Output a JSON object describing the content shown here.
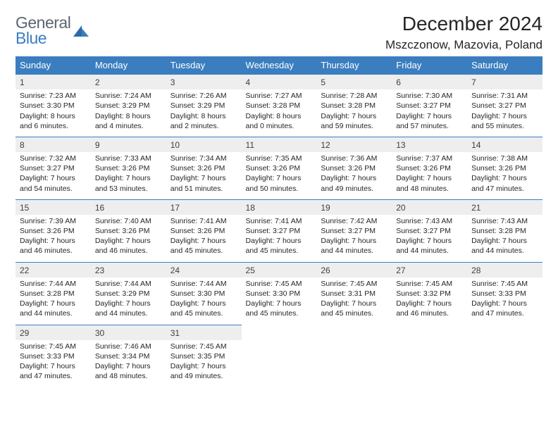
{
  "logo": {
    "line1": "General",
    "line2": "Blue"
  },
  "title": "December 2024",
  "location": "Mszczonow, Mazovia, Poland",
  "colors": {
    "brand_blue": "#3b7ec0",
    "header_gray": "#5c6670",
    "daynum_bg": "#eeeeee",
    "text": "#262626"
  },
  "day_headers": [
    "Sunday",
    "Monday",
    "Tuesday",
    "Wednesday",
    "Thursday",
    "Friday",
    "Saturday"
  ],
  "weeks": [
    [
      {
        "n": "1",
        "sr": "Sunrise: 7:23 AM",
        "ss": "Sunset: 3:30 PM",
        "d1": "Daylight: 8 hours",
        "d2": "and 6 minutes."
      },
      {
        "n": "2",
        "sr": "Sunrise: 7:24 AM",
        "ss": "Sunset: 3:29 PM",
        "d1": "Daylight: 8 hours",
        "d2": "and 4 minutes."
      },
      {
        "n": "3",
        "sr": "Sunrise: 7:26 AM",
        "ss": "Sunset: 3:29 PM",
        "d1": "Daylight: 8 hours",
        "d2": "and 2 minutes."
      },
      {
        "n": "4",
        "sr": "Sunrise: 7:27 AM",
        "ss": "Sunset: 3:28 PM",
        "d1": "Daylight: 8 hours",
        "d2": "and 0 minutes."
      },
      {
        "n": "5",
        "sr": "Sunrise: 7:28 AM",
        "ss": "Sunset: 3:28 PM",
        "d1": "Daylight: 7 hours",
        "d2": "and 59 minutes."
      },
      {
        "n": "6",
        "sr": "Sunrise: 7:30 AM",
        "ss": "Sunset: 3:27 PM",
        "d1": "Daylight: 7 hours",
        "d2": "and 57 minutes."
      },
      {
        "n": "7",
        "sr": "Sunrise: 7:31 AM",
        "ss": "Sunset: 3:27 PM",
        "d1": "Daylight: 7 hours",
        "d2": "and 55 minutes."
      }
    ],
    [
      {
        "n": "8",
        "sr": "Sunrise: 7:32 AM",
        "ss": "Sunset: 3:27 PM",
        "d1": "Daylight: 7 hours",
        "d2": "and 54 minutes."
      },
      {
        "n": "9",
        "sr": "Sunrise: 7:33 AM",
        "ss": "Sunset: 3:26 PM",
        "d1": "Daylight: 7 hours",
        "d2": "and 53 minutes."
      },
      {
        "n": "10",
        "sr": "Sunrise: 7:34 AM",
        "ss": "Sunset: 3:26 PM",
        "d1": "Daylight: 7 hours",
        "d2": "and 51 minutes."
      },
      {
        "n": "11",
        "sr": "Sunrise: 7:35 AM",
        "ss": "Sunset: 3:26 PM",
        "d1": "Daylight: 7 hours",
        "d2": "and 50 minutes."
      },
      {
        "n": "12",
        "sr": "Sunrise: 7:36 AM",
        "ss": "Sunset: 3:26 PM",
        "d1": "Daylight: 7 hours",
        "d2": "and 49 minutes."
      },
      {
        "n": "13",
        "sr": "Sunrise: 7:37 AM",
        "ss": "Sunset: 3:26 PM",
        "d1": "Daylight: 7 hours",
        "d2": "and 48 minutes."
      },
      {
        "n": "14",
        "sr": "Sunrise: 7:38 AM",
        "ss": "Sunset: 3:26 PM",
        "d1": "Daylight: 7 hours",
        "d2": "and 47 minutes."
      }
    ],
    [
      {
        "n": "15",
        "sr": "Sunrise: 7:39 AM",
        "ss": "Sunset: 3:26 PM",
        "d1": "Daylight: 7 hours",
        "d2": "and 46 minutes."
      },
      {
        "n": "16",
        "sr": "Sunrise: 7:40 AM",
        "ss": "Sunset: 3:26 PM",
        "d1": "Daylight: 7 hours",
        "d2": "and 46 minutes."
      },
      {
        "n": "17",
        "sr": "Sunrise: 7:41 AM",
        "ss": "Sunset: 3:26 PM",
        "d1": "Daylight: 7 hours",
        "d2": "and 45 minutes."
      },
      {
        "n": "18",
        "sr": "Sunrise: 7:41 AM",
        "ss": "Sunset: 3:27 PM",
        "d1": "Daylight: 7 hours",
        "d2": "and 45 minutes."
      },
      {
        "n": "19",
        "sr": "Sunrise: 7:42 AM",
        "ss": "Sunset: 3:27 PM",
        "d1": "Daylight: 7 hours",
        "d2": "and 44 minutes."
      },
      {
        "n": "20",
        "sr": "Sunrise: 7:43 AM",
        "ss": "Sunset: 3:27 PM",
        "d1": "Daylight: 7 hours",
        "d2": "and 44 minutes."
      },
      {
        "n": "21",
        "sr": "Sunrise: 7:43 AM",
        "ss": "Sunset: 3:28 PM",
        "d1": "Daylight: 7 hours",
        "d2": "and 44 minutes."
      }
    ],
    [
      {
        "n": "22",
        "sr": "Sunrise: 7:44 AM",
        "ss": "Sunset: 3:28 PM",
        "d1": "Daylight: 7 hours",
        "d2": "and 44 minutes."
      },
      {
        "n": "23",
        "sr": "Sunrise: 7:44 AM",
        "ss": "Sunset: 3:29 PM",
        "d1": "Daylight: 7 hours",
        "d2": "and 44 minutes."
      },
      {
        "n": "24",
        "sr": "Sunrise: 7:44 AM",
        "ss": "Sunset: 3:30 PM",
        "d1": "Daylight: 7 hours",
        "d2": "and 45 minutes."
      },
      {
        "n": "25",
        "sr": "Sunrise: 7:45 AM",
        "ss": "Sunset: 3:30 PM",
        "d1": "Daylight: 7 hours",
        "d2": "and 45 minutes."
      },
      {
        "n": "26",
        "sr": "Sunrise: 7:45 AM",
        "ss": "Sunset: 3:31 PM",
        "d1": "Daylight: 7 hours",
        "d2": "and 45 minutes."
      },
      {
        "n": "27",
        "sr": "Sunrise: 7:45 AM",
        "ss": "Sunset: 3:32 PM",
        "d1": "Daylight: 7 hours",
        "d2": "and 46 minutes."
      },
      {
        "n": "28",
        "sr": "Sunrise: 7:45 AM",
        "ss": "Sunset: 3:33 PM",
        "d1": "Daylight: 7 hours",
        "d2": "and 47 minutes."
      }
    ],
    [
      {
        "n": "29",
        "sr": "Sunrise: 7:45 AM",
        "ss": "Sunset: 3:33 PM",
        "d1": "Daylight: 7 hours",
        "d2": "and 47 minutes."
      },
      {
        "n": "30",
        "sr": "Sunrise: 7:46 AM",
        "ss": "Sunset: 3:34 PM",
        "d1": "Daylight: 7 hours",
        "d2": "and 48 minutes."
      },
      {
        "n": "31",
        "sr": "Sunrise: 7:45 AM",
        "ss": "Sunset: 3:35 PM",
        "d1": "Daylight: 7 hours",
        "d2": "and 49 minutes."
      },
      null,
      null,
      null,
      null
    ]
  ]
}
